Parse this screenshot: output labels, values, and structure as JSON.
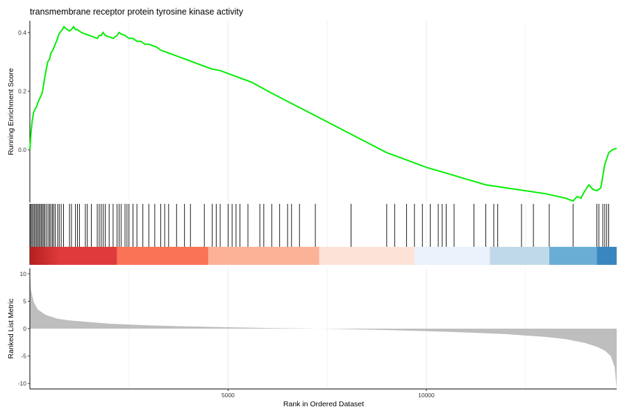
{
  "chart_data": {
    "type": "line",
    "title": "transmembrane receptor protein tyrosine kinase activity",
    "xlabel": "Rank in Ordered Dataset",
    "xlim": [
      0,
      14800
    ],
    "x_ticks": [
      5000,
      10000
    ],
    "x_tick_labels": [
      "5000",
      "10000"
    ],
    "grid": true,
    "panels": {
      "enrichment": {
        "ylabel": "Running Enrichment Score",
        "ylim": [
          -0.18,
          0.44
        ],
        "y_ticks": [
          0.0,
          0.2,
          0.4
        ],
        "y_tick_labels": [
          "0.0",
          "0.2",
          "0.4"
        ],
        "line_color": "#00ee00",
        "series": [
          {
            "x": [
              0,
              30,
              60,
              100,
              180,
              200,
              300,
              320,
              380,
              450,
              500,
              530,
              580,
              700,
              720,
              760,
              820,
              860,
              900,
              950,
              1000,
              1050,
              1100,
              1150,
              1200,
              1300,
              1400,
              1500,
              1700,
              1750,
              1800,
              1850,
              1900,
              2000,
              2100,
              2200,
              2250,
              2300,
              2400,
              2500,
              2600,
              2700,
              2800,
              2900,
              3000,
              3100,
              3200,
              3300,
              3400,
              3500,
              3600,
              3800,
              4000,
              4200,
              4400,
              4600,
              4800,
              5000,
              5200,
              5400,
              5600,
              6000,
              6500,
              7000,
              7500,
              8000,
              8500,
              9000,
              9500,
              10000,
              10500,
              11000,
              11500,
              12000,
              12500,
              13000,
              13500,
              13600,
              13700,
              13800,
              13900,
              14000,
              14100,
              14200,
              14300,
              14400,
              14500,
              14600,
              14700,
              14800
            ],
            "y": [
              0.0,
              0.06,
              0.1,
              0.13,
              0.15,
              0.16,
              0.19,
              0.2,
              0.25,
              0.3,
              0.31,
              0.33,
              0.34,
              0.38,
              0.39,
              0.4,
              0.41,
              0.42,
              0.415,
              0.41,
              0.405,
              0.41,
              0.42,
              0.41,
              0.41,
              0.4,
              0.395,
              0.39,
              0.38,
              0.39,
              0.39,
              0.4,
              0.39,
              0.385,
              0.38,
              0.39,
              0.4,
              0.395,
              0.39,
              0.38,
              0.38,
              0.37,
              0.37,
              0.36,
              0.36,
              0.355,
              0.35,
              0.34,
              0.335,
              0.33,
              0.325,
              0.315,
              0.305,
              0.295,
              0.285,
              0.275,
              0.27,
              0.26,
              0.25,
              0.24,
              0.23,
              0.2,
              0.165,
              0.13,
              0.095,
              0.06,
              0.025,
              -0.01,
              -0.035,
              -0.06,
              -0.08,
              -0.1,
              -0.12,
              -0.13,
              -0.14,
              -0.15,
              -0.165,
              -0.17,
              -0.175,
              -0.16,
              -0.165,
              -0.14,
              -0.12,
              -0.135,
              -0.14,
              -0.13,
              -0.05,
              -0.01,
              0.0,
              0.005
            ]
          }
        ]
      },
      "hits": {
        "positions": [
          20,
          50,
          80,
          110,
          140,
          170,
          200,
          230,
          260,
          290,
          320,
          350,
          380,
          420,
          460,
          500,
          530,
          570,
          600,
          640,
          700,
          740,
          790,
          850,
          1000,
          1050,
          1150,
          1200,
          1250,
          1400,
          1450,
          1550,
          1700,
          1750,
          1800,
          1850,
          1900,
          2000,
          2100,
          2200,
          2250,
          2300,
          2400,
          2450,
          2500,
          2600,
          2700,
          2850,
          3000,
          3150,
          3300,
          3400,
          3500,
          3700,
          3900,
          4050,
          4400,
          4600,
          4700,
          4800,
          5000,
          5100,
          5200,
          5300,
          5500,
          5800,
          5900,
          6100,
          6300,
          6500,
          6600,
          6800,
          7200,
          8100,
          9000,
          9200,
          9500,
          9700,
          9900,
          10100,
          10300,
          10400,
          10500,
          10700,
          11200,
          11500,
          11700,
          11800,
          12400,
          12700,
          13100,
          13700,
          14300,
          14350,
          14450,
          14500,
          14550,
          14600
        ]
      },
      "heatmap": {
        "bands": [
          {
            "start": 0,
            "end": 2200,
            "color": "#e03b3b"
          },
          {
            "start": 2200,
            "end": 4500,
            "color": "#fb7356"
          },
          {
            "start": 4500,
            "end": 7300,
            "color": "#fcb296"
          },
          {
            "start": 7300,
            "end": 9700,
            "color": "#fde3d7"
          },
          {
            "start": 9700,
            "end": 11600,
            "color": "#eaf1fa"
          },
          {
            "start": 11600,
            "end": 13100,
            "color": "#c0d9e9"
          },
          {
            "start": 13100,
            "end": 14300,
            "color": "#6baed5"
          },
          {
            "start": 14300,
            "end": 14800,
            "color": "#3a86c0"
          }
        ],
        "dark_start_color": "#b41f1f"
      },
      "ranked": {
        "ylabel": "Ranked List Metric",
        "ylim": [
          -11,
          11
        ],
        "y_ticks": [
          -10,
          -5,
          0,
          5,
          10
        ],
        "y_tick_labels": [
          "-10",
          "-5",
          "0",
          "5",
          "10"
        ],
        "fill_color": "#bebebe",
        "series": [
          {
            "x": [
              0,
              30,
              100,
              200,
              400,
              700,
              1000,
              1500,
              2000,
              3000,
              4000,
              5000,
              6000,
              7000,
              7300,
              8000,
              9000,
              10000,
              11000,
              12000,
              13000,
              13500,
              14000,
              14300,
              14500,
              14650,
              14750,
              14800
            ],
            "y": [
              10.5,
              7.0,
              4.8,
              3.5,
              2.5,
              1.8,
              1.5,
              1.2,
              0.9,
              0.6,
              0.4,
              0.25,
              0.12,
              0.03,
              0.0,
              -0.1,
              -0.25,
              -0.45,
              -0.7,
              -1.0,
              -1.5,
              -1.9,
              -2.6,
              -3.3,
              -4.0,
              -5.0,
              -7.0,
              -11.0
            ]
          }
        ]
      }
    }
  }
}
